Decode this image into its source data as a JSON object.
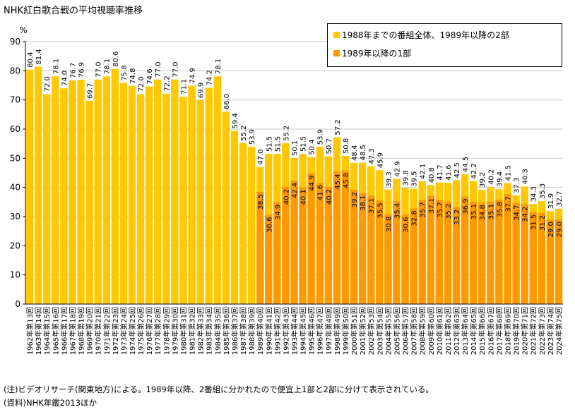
{
  "title": "NHK紅白歌合戦の平均視聴率推移",
  "notes": [
    "(注)ビデオリサーチ(関東地方)による。1989年以降、2番組に分かれたので便宜上1部と2部に分けて表示されている。",
    "(資料)NHK年鑑2013ほか"
  ],
  "colors": {
    "part2": "#ffc800",
    "part1": "#ff9900"
  },
  "chart_data": {
    "type": "bar",
    "ylabel": "%",
    "ylim": [
      0,
      90
    ],
    "yticks": [
      0,
      10,
      20,
      30,
      40,
      50,
      60,
      70,
      80,
      90
    ],
    "legend": [
      "1988年までの番組全体、1989年以降の2部",
      "1989年以降の1部"
    ],
    "legend_position": "top-right",
    "categories": [
      "1962年第13回",
      "1963年第14回",
      "1964年第15回",
      "1965年第16回",
      "1966年第17回",
      "1967年第18回",
      "1968年第19回",
      "1969年第20回",
      "1970年第21回",
      "1971年第22回",
      "1972年第23回",
      "1973年第24回",
      "1974年第25回",
      "1975年第26回",
      "1976年第27回",
      "1977年第28回",
      "1978年第29回",
      "1979年第30回",
      "1980年第31回",
      "1981年第32回",
      "1982年第33回",
      "1983年第34回",
      "1984年第35回",
      "1985年第36回",
      "1986年第37回",
      "1987年第38回",
      "1988年第39回",
      "1989年第40回",
      "1990年第41回",
      "1991年第42回",
      "1992年第43回",
      "1993年第44回",
      "1994年第45回",
      "1995年第46回",
      "1996年第47回",
      "1997年第48回",
      "1998年第49回",
      "1999年第50回",
      "2000年第51回",
      "2001年第52回",
      "2002年第53回",
      "2003年第54回",
      "2004年第55回",
      "2005年第56回",
      "2006年第57回",
      "2007年第58回",
      "2008年第59回",
      "2009年第60回",
      "2010年第61回",
      "2011年第62回",
      "2012年第63回",
      "2013年第64回",
      "2014年第65回",
      "2015年第66回",
      "2016年第67回",
      "2017年第68回",
      "2018年第69回",
      "2019年第70回",
      "2020年第71回",
      "2021年第72回",
      "2022年第73回",
      "2023年第74回",
      "2024年第75回"
    ],
    "series": [
      {
        "name": "1988年までの番組全体、1989年以降の2部",
        "values": [
          80.4,
          81.4,
          72.0,
          78.1,
          74.0,
          76.7,
          76.9,
          69.7,
          77.0,
          78.1,
          80.6,
          75.8,
          74.8,
          72.0,
          74.6,
          77.0,
          72.2,
          77.0,
          71.1,
          74.9,
          69.9,
          74.2,
          78.1,
          66.0,
          59.4,
          55.2,
          53.9,
          47.0,
          51.5,
          51.5,
          55.2,
          50.1,
          51.5,
          50.4,
          53.9,
          50.7,
          57.2,
          50.8,
          48.4,
          48.5,
          47.3,
          45.9,
          39.3,
          42.9,
          39.8,
          39.5,
          42.1,
          40.8,
          41.7,
          41.6,
          42.5,
          44.5,
          42.2,
          39.2,
          40.2,
          39.4,
          41.5,
          37.3,
          40.3,
          34.3,
          35.3,
          31.9,
          32.7
        ]
      },
      {
        "name": "1989年以降の1部",
        "values": [
          null,
          null,
          null,
          null,
          null,
          null,
          null,
          null,
          null,
          null,
          null,
          null,
          null,
          null,
          null,
          null,
          null,
          null,
          null,
          null,
          null,
          null,
          null,
          null,
          null,
          null,
          null,
          38.5,
          30.6,
          34.9,
          40.2,
          42.4,
          40.1,
          44.9,
          41.6,
          40.2,
          45.4,
          45.8,
          39.2,
          38.1,
          37.1,
          35.5,
          30.8,
          35.4,
          30.6,
          32.8,
          35.7,
          37.1,
          35.7,
          35.2,
          33.2,
          36.9,
          35.1,
          34.8,
          35.1,
          35.8,
          37.7,
          34.7,
          34.2,
          31.5,
          31.2,
          29.0,
          29.0
        ]
      }
    ]
  }
}
